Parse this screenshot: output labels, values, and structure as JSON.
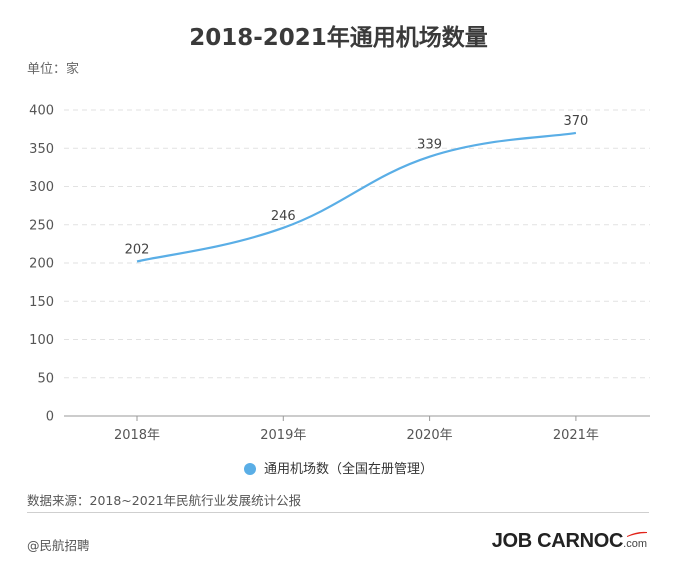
{
  "title": "2018-2021年通用机场数量",
  "unit_label": "单位：家",
  "legend_label": "通用机场数（全国在册管理）",
  "source": "数据来源：2018~2021年民航行业发展统计公报",
  "credit": "@民航招聘",
  "brand": {
    "text": "JOB CARNOC",
    "suffix": ".com",
    "accent_color": "#e2231a"
  },
  "colors": {
    "line": "#5aaee6",
    "grid": "#e2e2e2",
    "axis": "#999999"
  },
  "chart_data": {
    "type": "line",
    "title": "2018-2021年通用机场数量",
    "categories": [
      "2018年",
      "2019年",
      "2020年",
      "2021年"
    ],
    "series": [
      {
        "name": "通用机场数（全国在册管理）",
        "values": [
          202,
          246,
          339,
          370
        ]
      }
    ],
    "ylim": [
      0,
      400
    ],
    "yticks": [
      0,
      50,
      100,
      150,
      200,
      250,
      300,
      350,
      400
    ],
    "data_labels": true,
    "grid": true,
    "legend_position": "bottom"
  }
}
